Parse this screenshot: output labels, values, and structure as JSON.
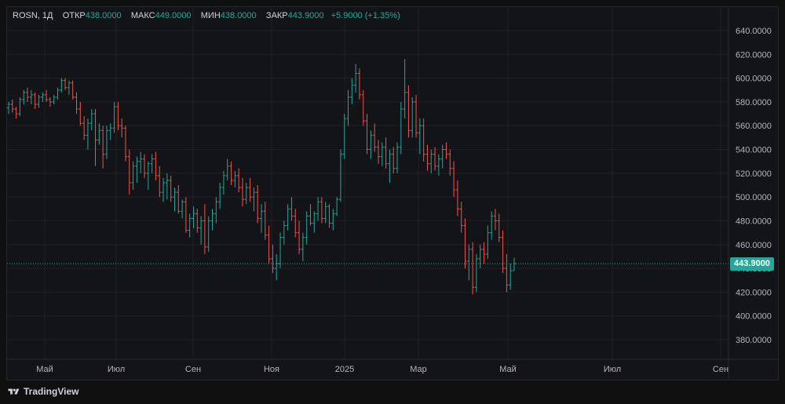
{
  "legend": {
    "symbol": "ROSN, 1Д",
    "open_label": "ОТКР",
    "open_value": "438.0000",
    "high_label": "МАКС",
    "high_value": "449.0000",
    "low_label": "МИН",
    "low_value": "438.0000",
    "close_label": "ЗАКР",
    "close_value": "443.9000",
    "change": "+5.9000 (+1.35%)"
  },
  "last_price_tag": "443.9000",
  "brand": "TradingView",
  "colors": {
    "up": "#26a69a",
    "down": "#ef5350",
    "background": "#131417",
    "text": "#b2b5be"
  },
  "chart_data": {
    "type": "ohlc",
    "title": "",
    "xlabel": "",
    "ylabel": "",
    "ylim": [
      360,
      650
    ],
    "last_price": 443.9,
    "y_ticks": [
      "640.0000",
      "620.0000",
      "600.0000",
      "580.0000",
      "560.0000",
      "540.0000",
      "520.0000",
      "500.0000",
      "480.0000",
      "460.0000",
      "440.0000",
      "420.0000",
      "400.0000",
      "380.0000"
    ],
    "x_ticks": [
      {
        "label": "Май",
        "x": 57
      },
      {
        "label": "Июл",
        "x": 148
      },
      {
        "label": "Сен",
        "x": 246
      },
      {
        "label": "Ноя",
        "x": 346
      },
      {
        "label": "2025",
        "x": 439
      },
      {
        "label": "Мар",
        "x": 533
      },
      {
        "label": "Май",
        "x": 647
      },
      {
        "label": "Июл",
        "x": 780
      },
      {
        "label": "Сен",
        "x": 918
      }
    ],
    "ohlc": [
      [
        575,
        580,
        570,
        578
      ],
      [
        578,
        582,
        571,
        574
      ],
      [
        574,
        576,
        566,
        570
      ],
      [
        570,
        584,
        568,
        582
      ],
      [
        582,
        590,
        578,
        588
      ],
      [
        588,
        592,
        580,
        584
      ],
      [
        584,
        590,
        578,
        586
      ],
      [
        586,
        588,
        574,
        578
      ],
      [
        578,
        586,
        575,
        584
      ],
      [
        584,
        588,
        580,
        586
      ],
      [
        586,
        590,
        580,
        582
      ],
      [
        582,
        584,
        576,
        580
      ],
      [
        580,
        586,
        578,
        584
      ],
      [
        584,
        592,
        582,
        590
      ],
      [
        590,
        600,
        588,
        598
      ],
      [
        598,
        600,
        590,
        592
      ],
      [
        592,
        598,
        586,
        596
      ],
      [
        596,
        598,
        582,
        584
      ],
      [
        584,
        588,
        570,
        574
      ],
      [
        574,
        580,
        560,
        562
      ],
      [
        562,
        568,
        548,
        552
      ],
      [
        552,
        566,
        540,
        562
      ],
      [
        562,
        574,
        556,
        570
      ],
      [
        570,
        574,
        526,
        548
      ],
      [
        548,
        562,
        544,
        556
      ],
      [
        556,
        560,
        524,
        536
      ],
      [
        536,
        560,
        532,
        556
      ],
      [
        556,
        562,
        548,
        558
      ],
      [
        558,
        580,
        554,
        576
      ],
      [
        576,
        580,
        556,
        560
      ],
      [
        560,
        566,
        550,
        558
      ],
      [
        558,
        560,
        530,
        534
      ],
      [
        534,
        540,
        502,
        512
      ],
      [
        512,
        530,
        506,
        526
      ],
      [
        526,
        534,
        512,
        530
      ],
      [
        530,
        538,
        520,
        532
      ],
      [
        532,
        536,
        516,
        520
      ],
      [
        520,
        530,
        506,
        528
      ],
      [
        528,
        536,
        520,
        532
      ],
      [
        532,
        538,
        514,
        518
      ],
      [
        518,
        526,
        500,
        504
      ],
      [
        504,
        516,
        496,
        512
      ],
      [
        512,
        520,
        498,
        514
      ],
      [
        514,
        518,
        496,
        500
      ],
      [
        500,
        508,
        488,
        504
      ],
      [
        504,
        510,
        486,
        488
      ],
      [
        488,
        498,
        482,
        496
      ],
      [
        496,
        500,
        470,
        472
      ],
      [
        472,
        486,
        466,
        482
      ],
      [
        482,
        492,
        474,
        486
      ],
      [
        486,
        490,
        470,
        474
      ],
      [
        474,
        484,
        460,
        480
      ],
      [
        480,
        494,
        452,
        458
      ],
      [
        458,
        484,
        454,
        480
      ],
      [
        480,
        490,
        472,
        486
      ],
      [
        486,
        500,
        478,
        496
      ],
      [
        496,
        512,
        490,
        508
      ],
      [
        508,
        522,
        502,
        518
      ],
      [
        518,
        532,
        514,
        526
      ],
      [
        526,
        530,
        510,
        514
      ],
      [
        514,
        522,
        508,
        518
      ],
      [
        518,
        524,
        504,
        508
      ],
      [
        508,
        516,
        492,
        498
      ],
      [
        498,
        512,
        494,
        508
      ],
      [
        508,
        516,
        496,
        500
      ],
      [
        500,
        508,
        488,
        504
      ],
      [
        504,
        510,
        478,
        482
      ],
      [
        482,
        494,
        470,
        488
      ],
      [
        488,
        496,
        464,
        468
      ],
      [
        468,
        476,
        444,
        448
      ],
      [
        448,
        460,
        436,
        440
      ],
      [
        440,
        452,
        430,
        444
      ],
      [
        444,
        470,
        440,
        466
      ],
      [
        466,
        480,
        460,
        476
      ],
      [
        476,
        494,
        472,
        490
      ],
      [
        490,
        500,
        480,
        484
      ],
      [
        484,
        490,
        466,
        470
      ],
      [
        470,
        480,
        452,
        456
      ],
      [
        456,
        470,
        446,
        466
      ],
      [
        466,
        488,
        460,
        484
      ],
      [
        484,
        494,
        476,
        478
      ],
      [
        478,
        488,
        470,
        486
      ],
      [
        486,
        500,
        480,
        496
      ],
      [
        496,
        500,
        478,
        482
      ],
      [
        482,
        496,
        478,
        492
      ],
      [
        492,
        494,
        474,
        478
      ],
      [
        478,
        490,
        472,
        486
      ],
      [
        486,
        500,
        484,
        498
      ],
      [
        498,
        540,
        496,
        536
      ],
      [
        536,
        570,
        532,
        566
      ],
      [
        566,
        590,
        560,
        584
      ],
      [
        584,
        600,
        578,
        594
      ],
      [
        594,
        612,
        588,
        604
      ],
      [
        604,
        608,
        582,
        586
      ],
      [
        586,
        590,
        560,
        564
      ],
      [
        564,
        570,
        536,
        540
      ],
      [
        540,
        556,
        532,
        552
      ],
      [
        552,
        562,
        538,
        542
      ],
      [
        542,
        548,
        528,
        534
      ],
      [
        534,
        546,
        526,
        542
      ],
      [
        542,
        550,
        524,
        528
      ],
      [
        528,
        540,
        512,
        536
      ],
      [
        536,
        542,
        520,
        524
      ],
      [
        524,
        546,
        520,
        542
      ],
      [
        542,
        580,
        536,
        574
      ],
      [
        574,
        616,
        566,
        588
      ],
      [
        588,
        594,
        550,
        556
      ],
      [
        556,
        584,
        550,
        580
      ],
      [
        580,
        586,
        550,
        554
      ],
      [
        554,
        566,
        536,
        560
      ],
      [
        560,
        566,
        530,
        536
      ],
      [
        536,
        544,
        522,
        528
      ],
      [
        528,
        540,
        520,
        536
      ],
      [
        536,
        542,
        522,
        526
      ],
      [
        526,
        536,
        518,
        532
      ],
      [
        532,
        544,
        524,
        540
      ],
      [
        540,
        546,
        532,
        536
      ],
      [
        536,
        540,
        518,
        524
      ],
      [
        524,
        530,
        500,
        506
      ],
      [
        506,
        514,
        484,
        490
      ],
      [
        490,
        496,
        470,
        476
      ],
      [
        476,
        482,
        440,
        446
      ],
      [
        446,
        460,
        430,
        456
      ],
      [
        456,
        462,
        418,
        424
      ],
      [
        424,
        452,
        420,
        448
      ],
      [
        448,
        460,
        440,
        456
      ],
      [
        456,
        462,
        444,
        452
      ],
      [
        452,
        476,
        448,
        470
      ],
      [
        470,
        488,
        464,
        484
      ],
      [
        484,
        490,
        472,
        480
      ],
      [
        480,
        486,
        462,
        466
      ],
      [
        466,
        472,
        436,
        440
      ],
      [
        440,
        452,
        420,
        426
      ],
      [
        426,
        444,
        422,
        438
      ],
      [
        438,
        449,
        438,
        443.9
      ]
    ]
  }
}
